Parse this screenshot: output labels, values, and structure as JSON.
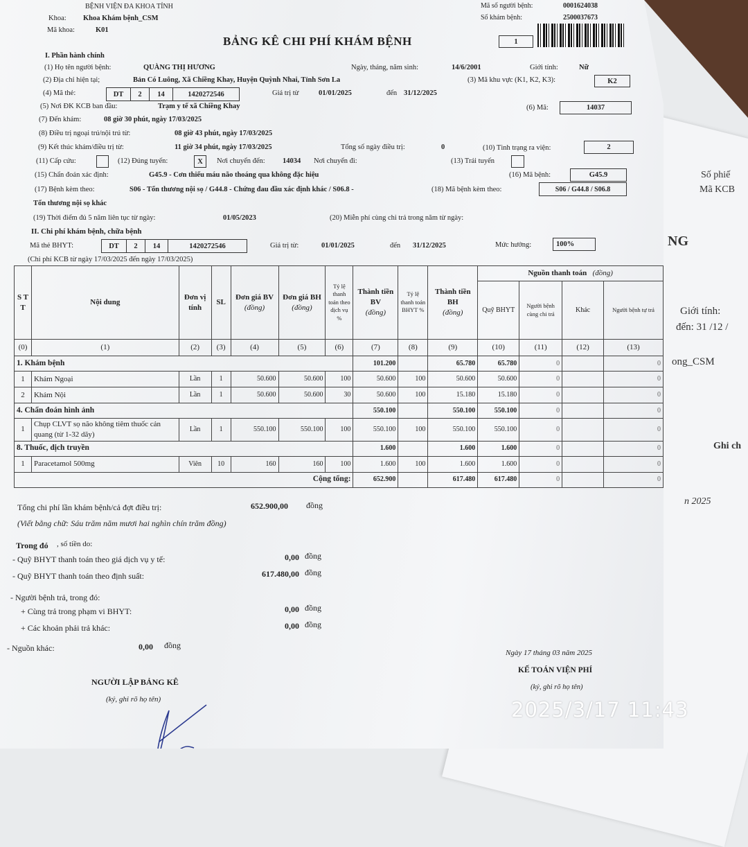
{
  "header": {
    "hospital": "BỆNH VIỆN ĐA KHOA TỈNH",
    "khoa_label": "Khoa:",
    "khoa": "Khoa Khám bệnh_CSM",
    "ma_khoa_label": "Mã khoa:",
    "ma_khoa": "K01",
    "title": "BẢNG KÊ CHI PHÍ KHÁM BỆNH",
    "page_no": "1",
    "ma_so_nb_label": "Mã số người bệnh:",
    "ma_so_nb": "0001624038",
    "so_kham_label": "Số khám bệnh:",
    "so_kham": "2500037673"
  },
  "admin": {
    "section": "I. Phần hành chính",
    "name_label": "(1) Họ tên người bệnh:",
    "name": "QUÀNG THỊ HƯƠNG",
    "dob_label": "Ngày, tháng, năm sinh:",
    "dob": "14/6/2001",
    "gender_label": "Giới tính:",
    "gender": "Nữ",
    "address_label": "(2) Địa chỉ hiện tại;",
    "address": "Bản Có Luông, Xã Chiềng Khay, Huyện Quỳnh Nhai, Tỉnh Sơn La",
    "area_label": "(3) Mã khu vực (K1, K2, K3):",
    "area": "K2",
    "card_label": "(4) Mã thẻ:",
    "card": [
      "DT",
      "2",
      "14",
      "1420272546"
    ],
    "valid_from_label": "Giá trị từ",
    "valid_from": "01/01/2025",
    "valid_to_label": "đến",
    "valid_to": "31/12/2025",
    "reg_label": "(5) Nơi ĐK KCB ban đầu:",
    "reg": "Trạm y tế xã Chiềng Khay",
    "reg_code_label": "(6) Mã:",
    "reg_code": "14037",
    "arrive_label": "(7) Đến khám:",
    "arrive": "08 giờ 30 phút, ngày 17/03/2025",
    "treat_label": "(8) Điều trị ngoại trú/nội trú từ:",
    "treat": "08 giờ 43 phút, ngày 17/03/2025",
    "end_label": "(9) Kết thúc khám/điều trị từ:",
    "end": "11 giờ 34 phút, ngày 17/03/2025",
    "days_label": "Tổng số ngày điều trị:",
    "days": "0",
    "discharge_label": "(10) Tình trạng ra viện:",
    "discharge": "2",
    "emergency_label": "(11) Cấp cứu:",
    "emergency": "",
    "correct_label": "(12) Đúng tuyến:",
    "correct": "X",
    "transfer_to_label": "Nơi chuyển đến:",
    "transfer_to": "14034",
    "transfer_from_label": "Nơi chuyển đi:",
    "wrong_label": "(13) Trái tuyến",
    "wrong": "",
    "diag_label": "(15) Chẩn đoán xác định:",
    "diag": "G45.9 - Cơn thiếu máu não thoáng qua không đặc hiệu",
    "diag_code_label": "(16) Mã bệnh:",
    "diag_code": "G45.9",
    "co_label": "(17) Bệnh kèm theo:",
    "co": "S06 - Tổn thương  nội sọ / G44.8 - Chứng đau đầu xác định khác / S06.8 -",
    "co_code_label": "(18) Mã bệnh kèm theo:",
    "co_code": "S06 / G44.8 / S06.8",
    "co_cont": "Tổn thương nội sọ khác",
    "five_label": "(19) Thời điểm đủ 5 năm liên tục từ ngày:",
    "five": "01/05/2023",
    "free_label": "(20) Miễn phí cùng chi trả trong năm từ ngày:"
  },
  "costs": {
    "section": "II. Chi phí khám bệnh, chữa bệnh",
    "card_label": "Mã thẻ BHYT:",
    "card": [
      "DT",
      "2",
      "14",
      "1420272546"
    ],
    "from_label": "Giá trị từ:",
    "from": "01/01/2025",
    "to_label": "đến",
    "to": "31/12/2025",
    "rate_label": "Mức hưởng:",
    "rate": "100%",
    "period": "(Chi phí KCB từ ngày 17/03/2025 đến ngày 17/03/2025)"
  },
  "table": {
    "headers": {
      "stt": "S T T",
      "content": "Nội dung",
      "unit": "Đơn vị tính",
      "sl": "SL",
      "price_bv": "Đơn giá BV",
      "price_bh": "Đơn giá BH",
      "dong": "(đồng)",
      "rate_dv": "Tỷ lệ thanh toán theo dịch vụ %",
      "amount_bv": "Thành tiền BV",
      "rate_bhyt": "Tỷ lệ thanh toán BHYT %",
      "amount_bh": "Thành tiền BH",
      "source": "Nguồn thanh toán",
      "quy": "Quỹ BHYT",
      "copay": "Người bệnh cùng chi trả",
      "other": "Khác",
      "self": "Người bệnh tự trả"
    },
    "index": [
      "(0)",
      "(1)",
      "(2)",
      "(3)",
      "(4)",
      "(5)",
      "(6)",
      "(7)",
      "(8)",
      "(9)",
      "(10)",
      "(11)",
      "(12)",
      "(13)"
    ],
    "groups": [
      {
        "label": "1. Khám bệnh",
        "amount_bv": "101.200",
        "amount_bh": "65.780",
        "quy": "65.780",
        "copay": "0",
        "self": "0",
        "items": [
          [
            "1",
            "Khám Ngoại",
            "Lần",
            "1",
            "50.600",
            "50.600",
            "100",
            "50.600",
            "100",
            "50.600",
            "50.600",
            "0",
            "",
            "0"
          ],
          [
            "2",
            "Khám Nội",
            "Lần",
            "1",
            "50.600",
            "50.600",
            "30",
            "50.600",
            "100",
            "15.180",
            "15.180",
            "0",
            "",
            "0"
          ]
        ]
      },
      {
        "label": "4. Chẩn đoán hình ảnh",
        "amount_bv": "550.100",
        "amount_bh": "550.100",
        "quy": "550.100",
        "copay": "0",
        "self": "0",
        "items": [
          [
            "1",
            "Chụp CLVT sọ não không tiêm thuốc cản quang (từ 1-32 dãy)",
            "Lần",
            "1",
            "550.100",
            "550.100",
            "100",
            "550.100",
            "100",
            "550.100",
            "550.100",
            "0",
            "",
            "0"
          ]
        ]
      },
      {
        "label": "8. Thuốc, dịch truyền",
        "amount_bv": "1.600",
        "amount_bh": "1.600",
        "quy": "1.600",
        "copay": "0",
        "self": "0",
        "items": [
          [
            "1",
            "Paracetamol 500mg",
            "Viên",
            "10",
            "160",
            "160",
            "100",
            "1.600",
            "100",
            "1.600",
            "1.600",
            "0",
            "",
            "0"
          ]
        ]
      }
    ],
    "total": {
      "label": "Cộng tổng:",
      "amount_bv": "652.900",
      "amount_bh": "617.480",
      "quy": "617.480",
      "copay": "0",
      "self": "0"
    }
  },
  "summary": {
    "total_label": "Tổng chi phí lần khám bệnh/cả đợt điều trị:",
    "total": "652.900,00",
    "unit": "đồng",
    "words": "(Viết bằng chữ: Sáu trăm năm mươi hai nghìn chín trăm  đồng)",
    "of_which_bold": "Trong đó",
    "of_which": " , số tiền do:",
    "lines": [
      {
        "label": "- Quỹ BHYT thanh toán theo giá dịch vụ y tế:",
        "value": "0,00"
      },
      {
        "label": "- Quỹ BHYT thanh toán theo định suất:",
        "value": "617.480,00"
      },
      {
        "label": "- Người bệnh trả, trong đó:",
        "value": ""
      },
      {
        "label": "+ Cùng trả trong phạm vi BHYT:",
        "value": "0,00"
      },
      {
        "label": "+ Các khoản phải trả khác:",
        "value": "0,00"
      }
    ],
    "other_label": "- Nguồn khác:",
    "other": "0,00"
  },
  "signatures": {
    "date": "Ngày 17 tháng 03 năm 2025",
    "accountant": "KẾ TOÁN VIỆN PHÍ",
    "sign_note": "(ký, ghi rõ họ tên)",
    "preparer": "NGƯỜI LẬP BẢNG KÊ"
  },
  "photo_timestamp": "2025/3/17 11:43",
  "background_paper": {
    "texts": [
      "Số phiế",
      "Mã KCB",
      "NG",
      "Giới tính:",
      "đến: 31 /12 /",
      "ong_CSM",
      "Ghi ch",
      "n 2025"
    ]
  }
}
